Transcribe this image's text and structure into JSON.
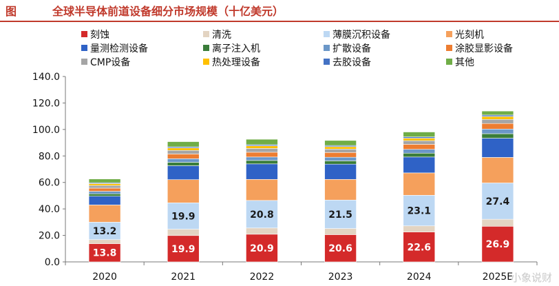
{
  "figure": {
    "label": "图",
    "title": "全球半导体前道设备细分市场规模（十亿美元）"
  },
  "watermark": "小象说财",
  "chart_data": {
    "type": "bar",
    "stacked": true,
    "categories": [
      "2020",
      "2021",
      "2022",
      "2023",
      "2024",
      "2025E"
    ],
    "ylim": [
      0,
      140
    ],
    "yticks": [
      "0.0",
      "20.0",
      "40.0",
      "60.0",
      "80.0",
      "100.0",
      "120.0",
      "140.0"
    ],
    "grid": false,
    "legend_position": "top",
    "series": [
      {
        "name": "刻蚀",
        "color": "#d42a2a",
        "values": [
          13.8,
          19.9,
          20.9,
          20.6,
          22.6,
          26.9
        ],
        "labels": [
          "13.8",
          "19.9",
          "20.9",
          "20.6",
          "22.6",
          "26.9"
        ]
      },
      {
        "name": "清洗",
        "color": "#e3d4c2",
        "values": [
          3.0,
          4.8,
          4.7,
          4.6,
          4.6,
          5.3
        ]
      },
      {
        "name": "薄膜沉积设备",
        "color": "#bdd8f3",
        "values": [
          13.2,
          19.9,
          20.8,
          21.5,
          23.1,
          27.4
        ],
        "labels": [
          "13.2",
          "19.9",
          "20.8",
          "21.5",
          "23.1",
          "27.4"
        ]
      },
      {
        "name": "光刻机",
        "color": "#f5a05c",
        "values": [
          13.0,
          17.5,
          15.9,
          15.6,
          16.9,
          19.3
        ]
      },
      {
        "name": "量测检测设备",
        "color": "#2f62c6",
        "values": [
          6.6,
          10.5,
          11.7,
          11.5,
          12.0,
          14.5
        ]
      },
      {
        "name": "离子注入机",
        "color": "#3a7d3a",
        "values": [
          1.8,
          2.6,
          2.6,
          2.5,
          2.9,
          3.4
        ]
      },
      {
        "name": "扩散设备",
        "color": "#6b97c8",
        "values": [
          1.9,
          2.7,
          2.6,
          2.7,
          2.9,
          3.5
        ]
      },
      {
        "name": "涂胶显影设备",
        "color": "#ed7d31",
        "values": [
          2.4,
          3.6,
          3.6,
          3.6,
          3.8,
          4.2
        ]
      },
      {
        "name": "CMP设备",
        "color": "#a5a5a5",
        "values": [
          2.0,
          2.7,
          2.9,
          2.6,
          2.7,
          3.1
        ]
      },
      {
        "name": "热处理设备",
        "color": "#ffc000",
        "values": [
          1.4,
          1.8,
          1.9,
          1.8,
          1.9,
          2.2
        ]
      },
      {
        "name": "去胶设备",
        "color": "#4472c4",
        "values": [
          0.7,
          0.9,
          0.9,
          0.9,
          1.0,
          1.1
        ]
      },
      {
        "name": "其他",
        "color": "#70ad47",
        "values": [
          2.8,
          3.9,
          4.1,
          3.8,
          3.7,
          3.0
        ]
      }
    ]
  }
}
